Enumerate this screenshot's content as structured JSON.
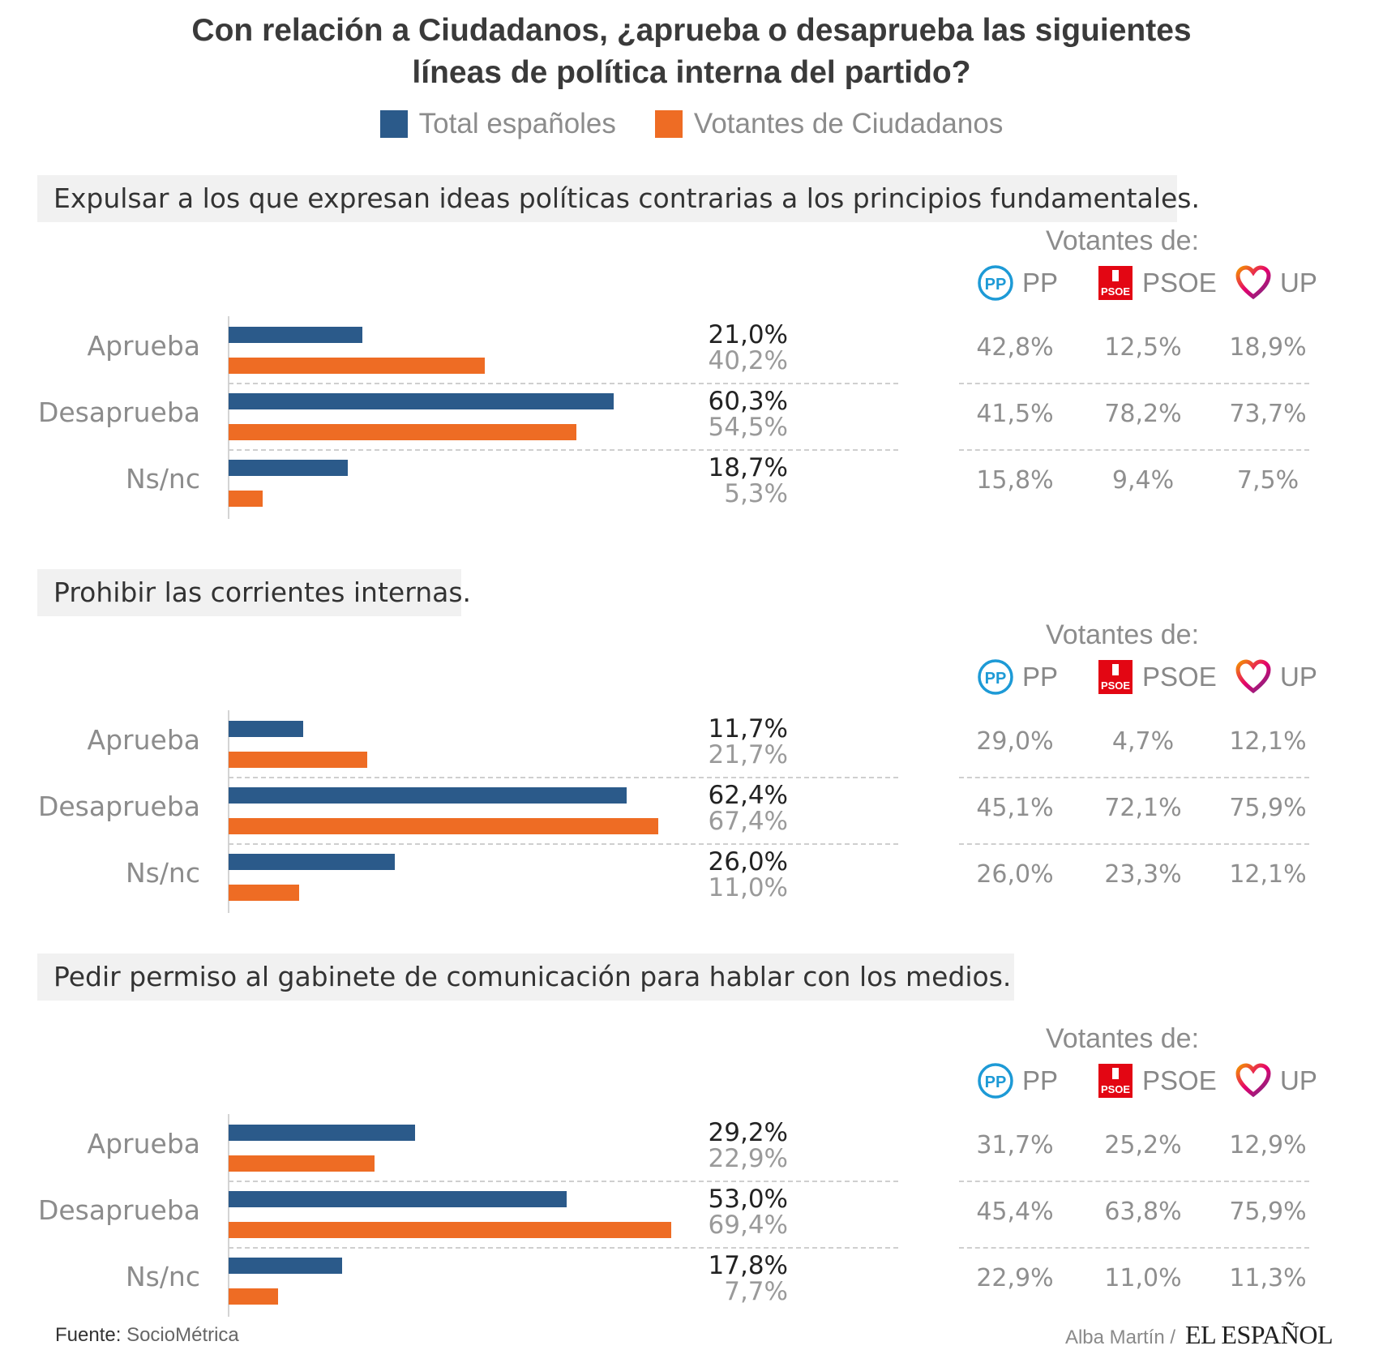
{
  "title": {
    "line1": "Con relación a Ciudadanos, ¿aprueba o desaprueba las siguientes",
    "line2": "líneas de política interna del partido?"
  },
  "legend": [
    {
      "label": "Total españoles",
      "color": "#2b5a8a"
    },
    {
      "label": "Votantes de Ciudadanos",
      "color": "#ee6c24"
    }
  ],
  "votantes_label": "Votantes de:",
  "parties": [
    {
      "name": "PP",
      "icon": "pp-logo-icon",
      "color": "#1d9ad6"
    },
    {
      "name": "PSOE",
      "icon": "psoe-logo-icon",
      "color": "#e30613"
    },
    {
      "name": "UP",
      "icon": "up-heart-icon",
      "color": "#6b2f87"
    }
  ],
  "chart_data": [
    {
      "type": "bar",
      "title": "Expulsar a los que expresan ideas políticas contrarias a los principios fundamentales.",
      "categories": [
        "Aprueba",
        "Desaprueba",
        "Ns/nc"
      ],
      "series": [
        {
          "name": "Total españoles",
          "values": [
            21.0,
            60.3,
            18.7
          ],
          "labels": [
            "21,0%",
            "60,3%",
            "18,7%"
          ]
        },
        {
          "name": "Votantes de Ciudadanos",
          "values": [
            40.2,
            54.5,
            5.3
          ],
          "labels": [
            "40,2%",
            "54,5%",
            "5,3%"
          ]
        }
      ],
      "party_table": [
        {
          "party": "PP",
          "values": [
            "42,8%",
            "41,5%",
            "15,8%"
          ]
        },
        {
          "party": "PSOE",
          "values": [
            "12,5%",
            "78,2%",
            "9,4%"
          ]
        },
        {
          "party": "UP",
          "values": [
            "18,9%",
            "73,7%",
            "7,5%"
          ]
        }
      ]
    },
    {
      "type": "bar",
      "title": "Prohibir las corrientes internas.",
      "categories": [
        "Aprueba",
        "Desaprueba",
        "Ns/nc"
      ],
      "series": [
        {
          "name": "Total españoles",
          "values": [
            11.7,
            62.4,
            26.0
          ],
          "labels": [
            "11,7%",
            "62,4%",
            "26,0%"
          ]
        },
        {
          "name": "Votantes de Ciudadanos",
          "values": [
            21.7,
            67.4,
            11.0
          ],
          "labels": [
            "21,7%",
            "67,4%",
            "11,0%"
          ]
        }
      ],
      "party_table": [
        {
          "party": "PP",
          "values": [
            "29,0%",
            "45,1%",
            "26,0%"
          ]
        },
        {
          "party": "PSOE",
          "values": [
            "4,7%",
            "72,1%",
            "23,3%"
          ]
        },
        {
          "party": "UP",
          "values": [
            "12,1%",
            "75,9%",
            "12,1%"
          ]
        }
      ]
    },
    {
      "type": "bar",
      "title": "Pedir permiso al gabinete de comunicación para hablar con los medios.",
      "categories": [
        "Aprueba",
        "Desaprueba",
        "Ns/nc"
      ],
      "series": [
        {
          "name": "Total españoles",
          "values": [
            29.2,
            53.0,
            17.8
          ],
          "labels": [
            "29,2%",
            "53,0%",
            "17,8%"
          ]
        },
        {
          "name": "Votantes de Ciudadanos",
          "values": [
            22.9,
            69.4,
            7.7
          ],
          "labels": [
            "22,9%",
            "69,4%",
            "7,7%"
          ]
        }
      ],
      "party_table": [
        {
          "party": "PP",
          "values": [
            "31,7%",
            "45,4%",
            "22,9%"
          ]
        },
        {
          "party": "PSOE",
          "values": [
            "25,2%",
            "63,8%",
            "11,0%"
          ]
        },
        {
          "party": "UP",
          "values": [
            "12,9%",
            "75,9%",
            "11,3%"
          ]
        }
      ]
    }
  ],
  "footer": {
    "source_label": "Fuente:",
    "source_value": "SocioMétrica",
    "author": "Alba Martín /",
    "brand": "EL ESPAÑOL"
  }
}
